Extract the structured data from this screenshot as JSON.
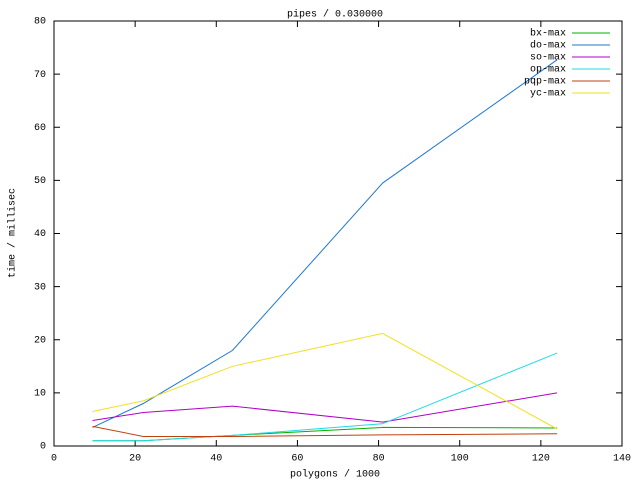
{
  "chart_data": {
    "type": "line",
    "title": "pipes / 0.030000",
    "x_label": "polygons / 1000",
    "y_label": "time / millisec",
    "x": [
      9.5,
      22,
      44,
      81,
      124
    ],
    "series": [
      {
        "name": "bx-max",
        "color": "#00b000",
        "values": [
          1,
          1,
          2,
          3.5,
          3.4
        ]
      },
      {
        "name": "do-max",
        "color": "#1e78d2",
        "values": [
          3.5,
          8,
          18,
          49.5,
          72.7
        ]
      },
      {
        "name": "so-max",
        "color": "#b000c8",
        "values": [
          4.8,
          6.3,
          7.5,
          4.5,
          10
        ]
      },
      {
        "name": "op-max",
        "color": "#20d8e8",
        "values": [
          1,
          1,
          2,
          4.2,
          17.5
        ]
      },
      {
        "name": "pqp-max",
        "color": "#c04010",
        "values": [
          3.7,
          1.8,
          1.8,
          2.1,
          2.3
        ]
      },
      {
        "name": "yc-max",
        "color": "#f0e020",
        "values": [
          6.5,
          8.5,
          15,
          21.2,
          3.2
        ]
      }
    ],
    "xlim": [
      0,
      140
    ],
    "xticks": [
      0,
      20,
      40,
      60,
      80,
      100,
      120,
      140
    ],
    "ylim": [
      0,
      80
    ],
    "yticks": [
      0,
      10,
      20,
      30,
      40,
      50,
      60,
      70,
      80
    ],
    "grid": false,
    "legend": "top-right"
  }
}
